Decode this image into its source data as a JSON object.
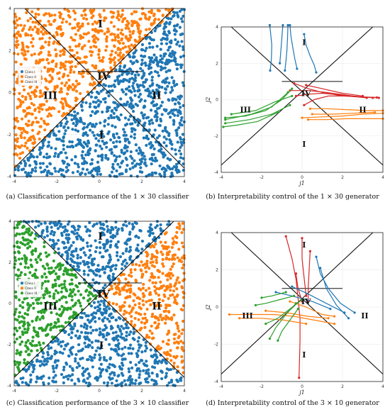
{
  "captions": {
    "a": "(a) Classification performance of the 1 × 30 classifier",
    "b": "(b) Interpretability control of the 1 × 30 generator",
    "c": "(c) Classification performance of the 3 × 10 classifier",
    "d": "(d) Interpretability control of the 3 × 10 generator"
  },
  "colors": {
    "blue": "#1f77b4",
    "orange": "#ff7f0e",
    "green": "#2ca02c",
    "red": "#d62728"
  },
  "chart_data": [
    {
      "id": "a",
      "type": "scatter",
      "xlim": [
        -4,
        4
      ],
      "ylim": [
        -4,
        4
      ],
      "xticks": [
        -4,
        -2,
        0,
        2,
        4
      ],
      "yticks": [
        -4,
        -2,
        0,
        2,
        4
      ],
      "legend": {
        "placement": "center-left",
        "entries": [
          "Class I",
          "Class II",
          "Class III"
        ]
      },
      "region_labels": [
        {
          "text": "I",
          "x": 0.05,
          "y": 3.1
        },
        {
          "text": "II",
          "x": 2.7,
          "y": -0.3
        },
        {
          "text": "III",
          "x": -2.3,
          "y": -0.3
        },
        {
          "text": "IV",
          "x": 0.2,
          "y": 0.6
        },
        {
          "text": "I",
          "x": 0.1,
          "y": -2.2
        }
      ],
      "class_regions": {
        "upper": "orange",
        "left": "orange",
        "right": "blue",
        "lower": "blue"
      }
    },
    {
      "id": "b",
      "type": "line",
      "xlim": [
        -4,
        4
      ],
      "ylim": [
        -4,
        4
      ],
      "xticks": [
        -4,
        -2,
        0,
        2,
        4
      ],
      "yticks": [
        -4,
        -2,
        0,
        2,
        4
      ],
      "xlabel": "j1",
      "ylabel": "j2",
      "region_labels": [
        {
          "text": "I",
          "x": 0.1,
          "y": 3.0
        },
        {
          "text": "II",
          "x": 3.0,
          "y": -0.7
        },
        {
          "text": "III",
          "x": -2.8,
          "y": -0.7
        },
        {
          "text": "IV",
          "x": 0.2,
          "y": 0.2
        },
        {
          "text": "I",
          "x": 0.1,
          "y": -2.6
        }
      ],
      "series": [
        {
          "color": "blue",
          "paths": [
            [
              [
                -1.6,
                4.1
              ],
              [
                -1.55,
                3.6
              ],
              [
                -1.5,
                3.0
              ],
              [
                -1.52,
                2.2
              ],
              [
                -1.58,
                1.6
              ]
            ],
            [
              [
                -0.7,
                4.1
              ],
              [
                -0.72,
                3.4
              ],
              [
                -0.75,
                2.7
              ],
              [
                -0.8,
                2.1
              ],
              [
                -0.85,
                1.6
              ]
            ],
            [
              [
                -0.6,
                4.1
              ],
              [
                -0.55,
                3.5
              ],
              [
                -0.45,
                2.8
              ],
              [
                -0.35,
                2.2
              ],
              [
                -0.25,
                1.7
              ]
            ],
            [
              [
                0.1,
                3.6
              ],
              [
                0.2,
                3.0
              ],
              [
                0.4,
                2.4
              ],
              [
                0.6,
                1.9
              ],
              [
                0.7,
                1.5
              ]
            ],
            [
              [
                -0.95,
                4.1
              ],
              [
                -1.0,
                3.4
              ],
              [
                -1.05,
                2.7
              ],
              [
                -1.1,
                2.0
              ]
            ]
          ]
        },
        {
          "color": "red",
          "paths": [
            [
              [
                -0.4,
                0.9
              ],
              [
                0.3,
                0.6
              ],
              [
                1.0,
                0.4
              ],
              [
                2.0,
                0.2
              ],
              [
                3.0,
                0.15
              ],
              [
                3.8,
                0.1
              ]
            ],
            [
              [
                -0.3,
                0.2
              ],
              [
                0.3,
                0.3
              ],
              [
                1.0,
                0.35
              ],
              [
                2.0,
                0.25
              ],
              [
                3.0,
                0.15
              ],
              [
                3.7,
                0.12
              ]
            ],
            [
              [
                0.1,
                -0.3
              ],
              [
                0.6,
                0.0
              ],
              [
                1.3,
                0.2
              ],
              [
                2.2,
                0.2
              ],
              [
                3.2,
                0.1
              ]
            ],
            [
              [
                -0.6,
                0.5
              ],
              [
                0.3,
                0.5
              ],
              [
                1.2,
                0.4
              ],
              [
                2.5,
                0.2
              ],
              [
                3.5,
                0.1
              ]
            ],
            [
              [
                0.2,
                0.8
              ],
              [
                1.0,
                0.6
              ],
              [
                2.0,
                0.35
              ],
              [
                3.0,
                0.2
              ]
            ]
          ]
        },
        {
          "color": "orange",
          "paths": [
            [
              [
                0.0,
                -1.0
              ],
              [
                1.0,
                -0.95
              ],
              [
                2.0,
                -0.9
              ],
              [
                3.0,
                -0.8
              ],
              [
                4.0,
                -0.75
              ]
            ],
            [
              [
                0.3,
                -1.1
              ],
              [
                1.2,
                -1.1
              ],
              [
                2.2,
                -1.05
              ],
              [
                3.2,
                -1.05
              ],
              [
                4.0,
                -1.05
              ]
            ],
            [
              [
                0.4,
                -0.5
              ],
              [
                1.2,
                -0.5
              ],
              [
                2.2,
                -0.55
              ],
              [
                3.2,
                -0.6
              ],
              [
                4.0,
                -0.6
              ]
            ],
            [
              [
                0.5,
                -0.8
              ],
              [
                1.5,
                -0.8
              ],
              [
                2.5,
                -0.75
              ],
              [
                3.6,
                -0.7
              ]
            ]
          ]
        },
        {
          "color": "green",
          "paths": [
            [
              [
                -0.5,
                0.6
              ],
              [
                -1.0,
                0.0
              ],
              [
                -1.8,
                -0.6
              ],
              [
                -2.8,
                -0.9
              ],
              [
                -3.8,
                -1.0
              ]
            ],
            [
              [
                -0.7,
                0.4
              ],
              [
                -1.5,
                -0.4
              ],
              [
                -2.5,
                -0.8
              ],
              [
                -3.8,
                -1.1
              ]
            ],
            [
              [
                -0.6,
                -0.3
              ],
              [
                -1.5,
                -0.8
              ],
              [
                -2.6,
                -1.1
              ],
              [
                -3.8,
                -1.3
              ]
            ],
            [
              [
                -1.2,
                -0.7
              ],
              [
                -2.2,
                -1.2
              ],
              [
                -3.2,
                -1.4
              ],
              [
                -3.9,
                -1.5
              ]
            ],
            [
              [
                -0.5,
                0.2
              ],
              [
                -1.3,
                -0.1
              ],
              [
                -2.3,
                -0.6
              ],
              [
                -3.5,
                -0.8
              ]
            ]
          ]
        }
      ]
    },
    {
      "id": "c",
      "type": "scatter",
      "xlim": [
        -4,
        4
      ],
      "ylim": [
        -4,
        4
      ],
      "xticks": [
        -4,
        -2,
        0,
        2,
        4
      ],
      "yticks": [
        -4,
        -2,
        0,
        2,
        4
      ],
      "legend": {
        "placement": "center-left",
        "entries": [
          "Class I",
          "Class II",
          "Class III"
        ]
      },
      "region_labels": [
        {
          "text": "I",
          "x": 0.05,
          "y": 3.1
        },
        {
          "text": "II",
          "x": 2.7,
          "y": -0.3
        },
        {
          "text": "III",
          "x": -2.3,
          "y": -0.3
        },
        {
          "text": "IV",
          "x": 0.2,
          "y": 0.3
        },
        {
          "text": "I",
          "x": 0.1,
          "y": -2.2
        }
      ],
      "class_regions": {
        "upper": "blue",
        "left": "green",
        "right": "orange",
        "lower": "blue"
      }
    },
    {
      "id": "d",
      "type": "line",
      "xlim": [
        -4,
        4
      ],
      "ylim": [
        -4,
        4
      ],
      "xticks": [
        -4,
        -2,
        0,
        2,
        4
      ],
      "yticks": [
        -4,
        -2,
        0,
        2,
        4
      ],
      "xlabel": "j1",
      "ylabel": "j2",
      "region_labels": [
        {
          "text": "I",
          "x": 0.1,
          "y": 3.2
        },
        {
          "text": "II",
          "x": 3.1,
          "y": -0.6
        },
        {
          "text": "III",
          "x": -2.7,
          "y": -0.6
        },
        {
          "text": "IV",
          "x": 0.2,
          "y": 0.15
        },
        {
          "text": "I",
          "x": 0.1,
          "y": -2.7
        }
      ],
      "series": [
        {
          "color": "red",
          "paths": [
            [
              [
                -0.8,
                3.8
              ],
              [
                -0.5,
                2.6
              ],
              [
                -0.3,
                1.5
              ],
              [
                -0.2,
                0.5
              ],
              [
                -0.1,
                -0.6
              ],
              [
                -0.1,
                -1.8
              ],
              [
                -0.15,
                -3.8
              ]
            ],
            [
              [
                0.0,
                3.7
              ],
              [
                0.0,
                2.6
              ],
              [
                0.1,
                1.6
              ],
              [
                0.2,
                0.6
              ]
            ],
            [
              [
                0.4,
                3.0
              ],
              [
                0.35,
                2.0
              ],
              [
                0.3,
                1.0
              ],
              [
                0.3,
                0.3
              ]
            ],
            [
              [
                -0.3,
                1.8
              ],
              [
                -0.2,
                1.0
              ],
              [
                0.0,
                0.3
              ]
            ]
          ]
        },
        {
          "color": "blue",
          "paths": [
            [
              [
                0.7,
                2.7
              ],
              [
                0.9,
                1.8
              ],
              [
                1.3,
                1.0
              ],
              [
                1.9,
                0.2
              ],
              [
                2.6,
                -0.3
              ]
            ],
            [
              [
                -0.5,
                1.1
              ],
              [
                0.3,
                0.7
              ],
              [
                1.2,
                0.2
              ],
              [
                2.1,
                -0.3
              ]
            ],
            [
              [
                -1.3,
                0.8
              ],
              [
                -0.5,
                0.6
              ],
              [
                0.5,
                0.3
              ],
              [
                1.4,
                -0.1
              ]
            ],
            [
              [
                0.9,
                2.1
              ],
              [
                1.2,
                1.0
              ],
              [
                1.7,
                0.1
              ],
              [
                2.3,
                -0.6
              ]
            ]
          ]
        },
        {
          "color": "orange",
          "paths": [
            [
              [
                -3.6,
                -0.4
              ],
              [
                -2.5,
                -0.4
              ],
              [
                -1.4,
                -0.4
              ],
              [
                -0.4,
                -0.5
              ],
              [
                0.6,
                -0.7
              ],
              [
                1.6,
                -0.9
              ]
            ],
            [
              [
                -3.1,
                -0.6
              ],
              [
                -2.0,
                -0.6
              ],
              [
                -0.9,
                -0.7
              ],
              [
                0.2,
                -0.9
              ]
            ],
            [
              [
                -1.8,
                -0.2
              ],
              [
                -0.8,
                -0.3
              ],
              [
                0.3,
                -0.5
              ],
              [
                1.3,
                -0.6
              ]
            ],
            [
              [
                -0.6,
                0.3
              ],
              [
                0.2,
                0.0
              ],
              [
                1.0,
                -0.4
              ],
              [
                1.6,
                -0.5
              ]
            ]
          ]
        },
        {
          "color": "green",
          "paths": [
            [
              [
                -0.3,
                0.2
              ],
              [
                -0.8,
                -0.4
              ],
              [
                -1.3,
                -1.1
              ],
              [
                -1.6,
                -1.7
              ]
            ],
            [
              [
                -0.2,
                -0.1
              ],
              [
                -0.6,
                -0.7
              ],
              [
                -1.0,
                -1.3
              ],
              [
                -1.2,
                -1.8
              ]
            ],
            [
              [
                -0.4,
                0.6
              ],
              [
                -1.1,
                0.4
              ],
              [
                -1.8,
                0.2
              ],
              [
                -2.3,
                0.1
              ]
            ],
            [
              [
                0.0,
                0.4
              ],
              [
                -0.6,
                -0.1
              ],
              [
                -1.2,
                -0.6
              ],
              [
                -1.8,
                -0.9
              ]
            ],
            [
              [
                -0.8,
                0.8
              ],
              [
                -1.5,
                0.6
              ],
              [
                -2.0,
                0.5
              ]
            ]
          ]
        }
      ]
    }
  ]
}
